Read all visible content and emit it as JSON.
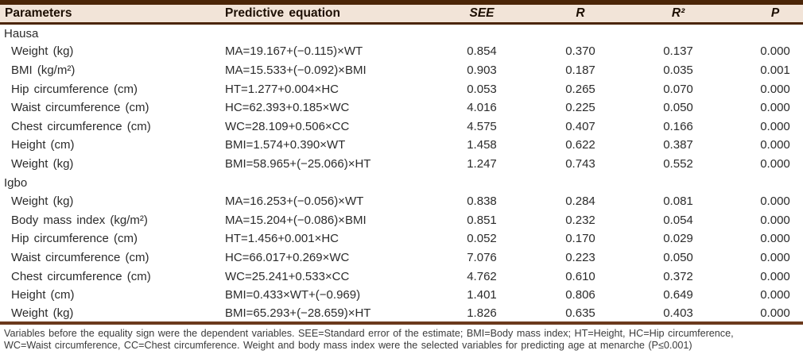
{
  "colors": {
    "bar_dark": "#4b2507",
    "bottom_rule": "#6b3a1d",
    "header_bg": "#f2e4d8"
  },
  "table": {
    "headers": [
      "Parameters",
      "Predictive equation",
      "SEE",
      "R",
      "R²",
      "P"
    ],
    "groups": [
      {
        "label": "Hausa",
        "rows": [
          [
            "Weight (kg)",
            "MA=19.167+(−0.115)×WT",
            "0.854",
            "0.370",
            "0.137",
            "0.000"
          ],
          [
            "BMI (kg/m²)",
            "MA=15.533+(−0.092)×BMI",
            "0.903",
            "0.187",
            "0.035",
            "0.001"
          ],
          [
            "Hip circumference (cm)",
            "HT=1.277+0.004×HC",
            "0.053",
            "0.265",
            "0.070",
            "0.000"
          ],
          [
            "Waist circumference (cm)",
            "HC=62.393+0.185×WC",
            "4.016",
            "0.225",
            "0.050",
            "0.000"
          ],
          [
            "Chest circumference (cm)",
            "WC=28.109+0.506×CC",
            "4.575",
            "0.407",
            "0.166",
            "0.000"
          ],
          [
            "Height (cm)",
            "BMI=1.574+0.390×WT",
            "1.458",
            "0.622",
            "0.387",
            "0.000"
          ],
          [
            "Weight (kg)",
            "BMI=58.965+(−25.066)×HT",
            "1.247",
            "0.743",
            "0.552",
            "0.000"
          ]
        ]
      },
      {
        "label": "Igbo",
        "rows": [
          [
            "Weight (kg)",
            "MA=16.253+(−0.056)×WT",
            "0.838",
            "0.284",
            "0.081",
            "0.000"
          ],
          [
            "Body mass index (kg/m²)",
            "MA=15.204+(−0.086)×BMI",
            "0.851",
            "0.232",
            "0.054",
            "0.000"
          ],
          [
            "Hip circumference (cm)",
            "HT=1.456+0.001×HC",
            "0.052",
            "0.170",
            "0.029",
            "0.000"
          ],
          [
            "Waist circumference (cm)",
            "HC=66.017+0.269×WC",
            "7.076",
            "0.223",
            "0.050",
            "0.000"
          ],
          [
            "Chest circumference (cm)",
            "WC=25.241+0.533×CC",
            "4.762",
            "0.610",
            "0.372",
            "0.000"
          ],
          [
            "Height (cm)",
            "BMI=0.433×WT+(−0.969)",
            "1.401",
            "0.806",
            "0.649",
            "0.000"
          ],
          [
            "Weight (kg)",
            "BMI=65.293+(−28.659)×HT",
            "1.826",
            "0.635",
            "0.403",
            "0.000"
          ]
        ]
      }
    ]
  },
  "footnote": {
    "line1": "Variables before the equality sign were the dependent variables. SEE=Standard error of the estimate; BMI=Body mass index; HT=Height, HC=Hip circumference,",
    "line2": "WC=Waist circumference, CC=Chest circumference. Weight and body mass index were the selected variables for predicting age at menarche (P≤0.001)"
  }
}
